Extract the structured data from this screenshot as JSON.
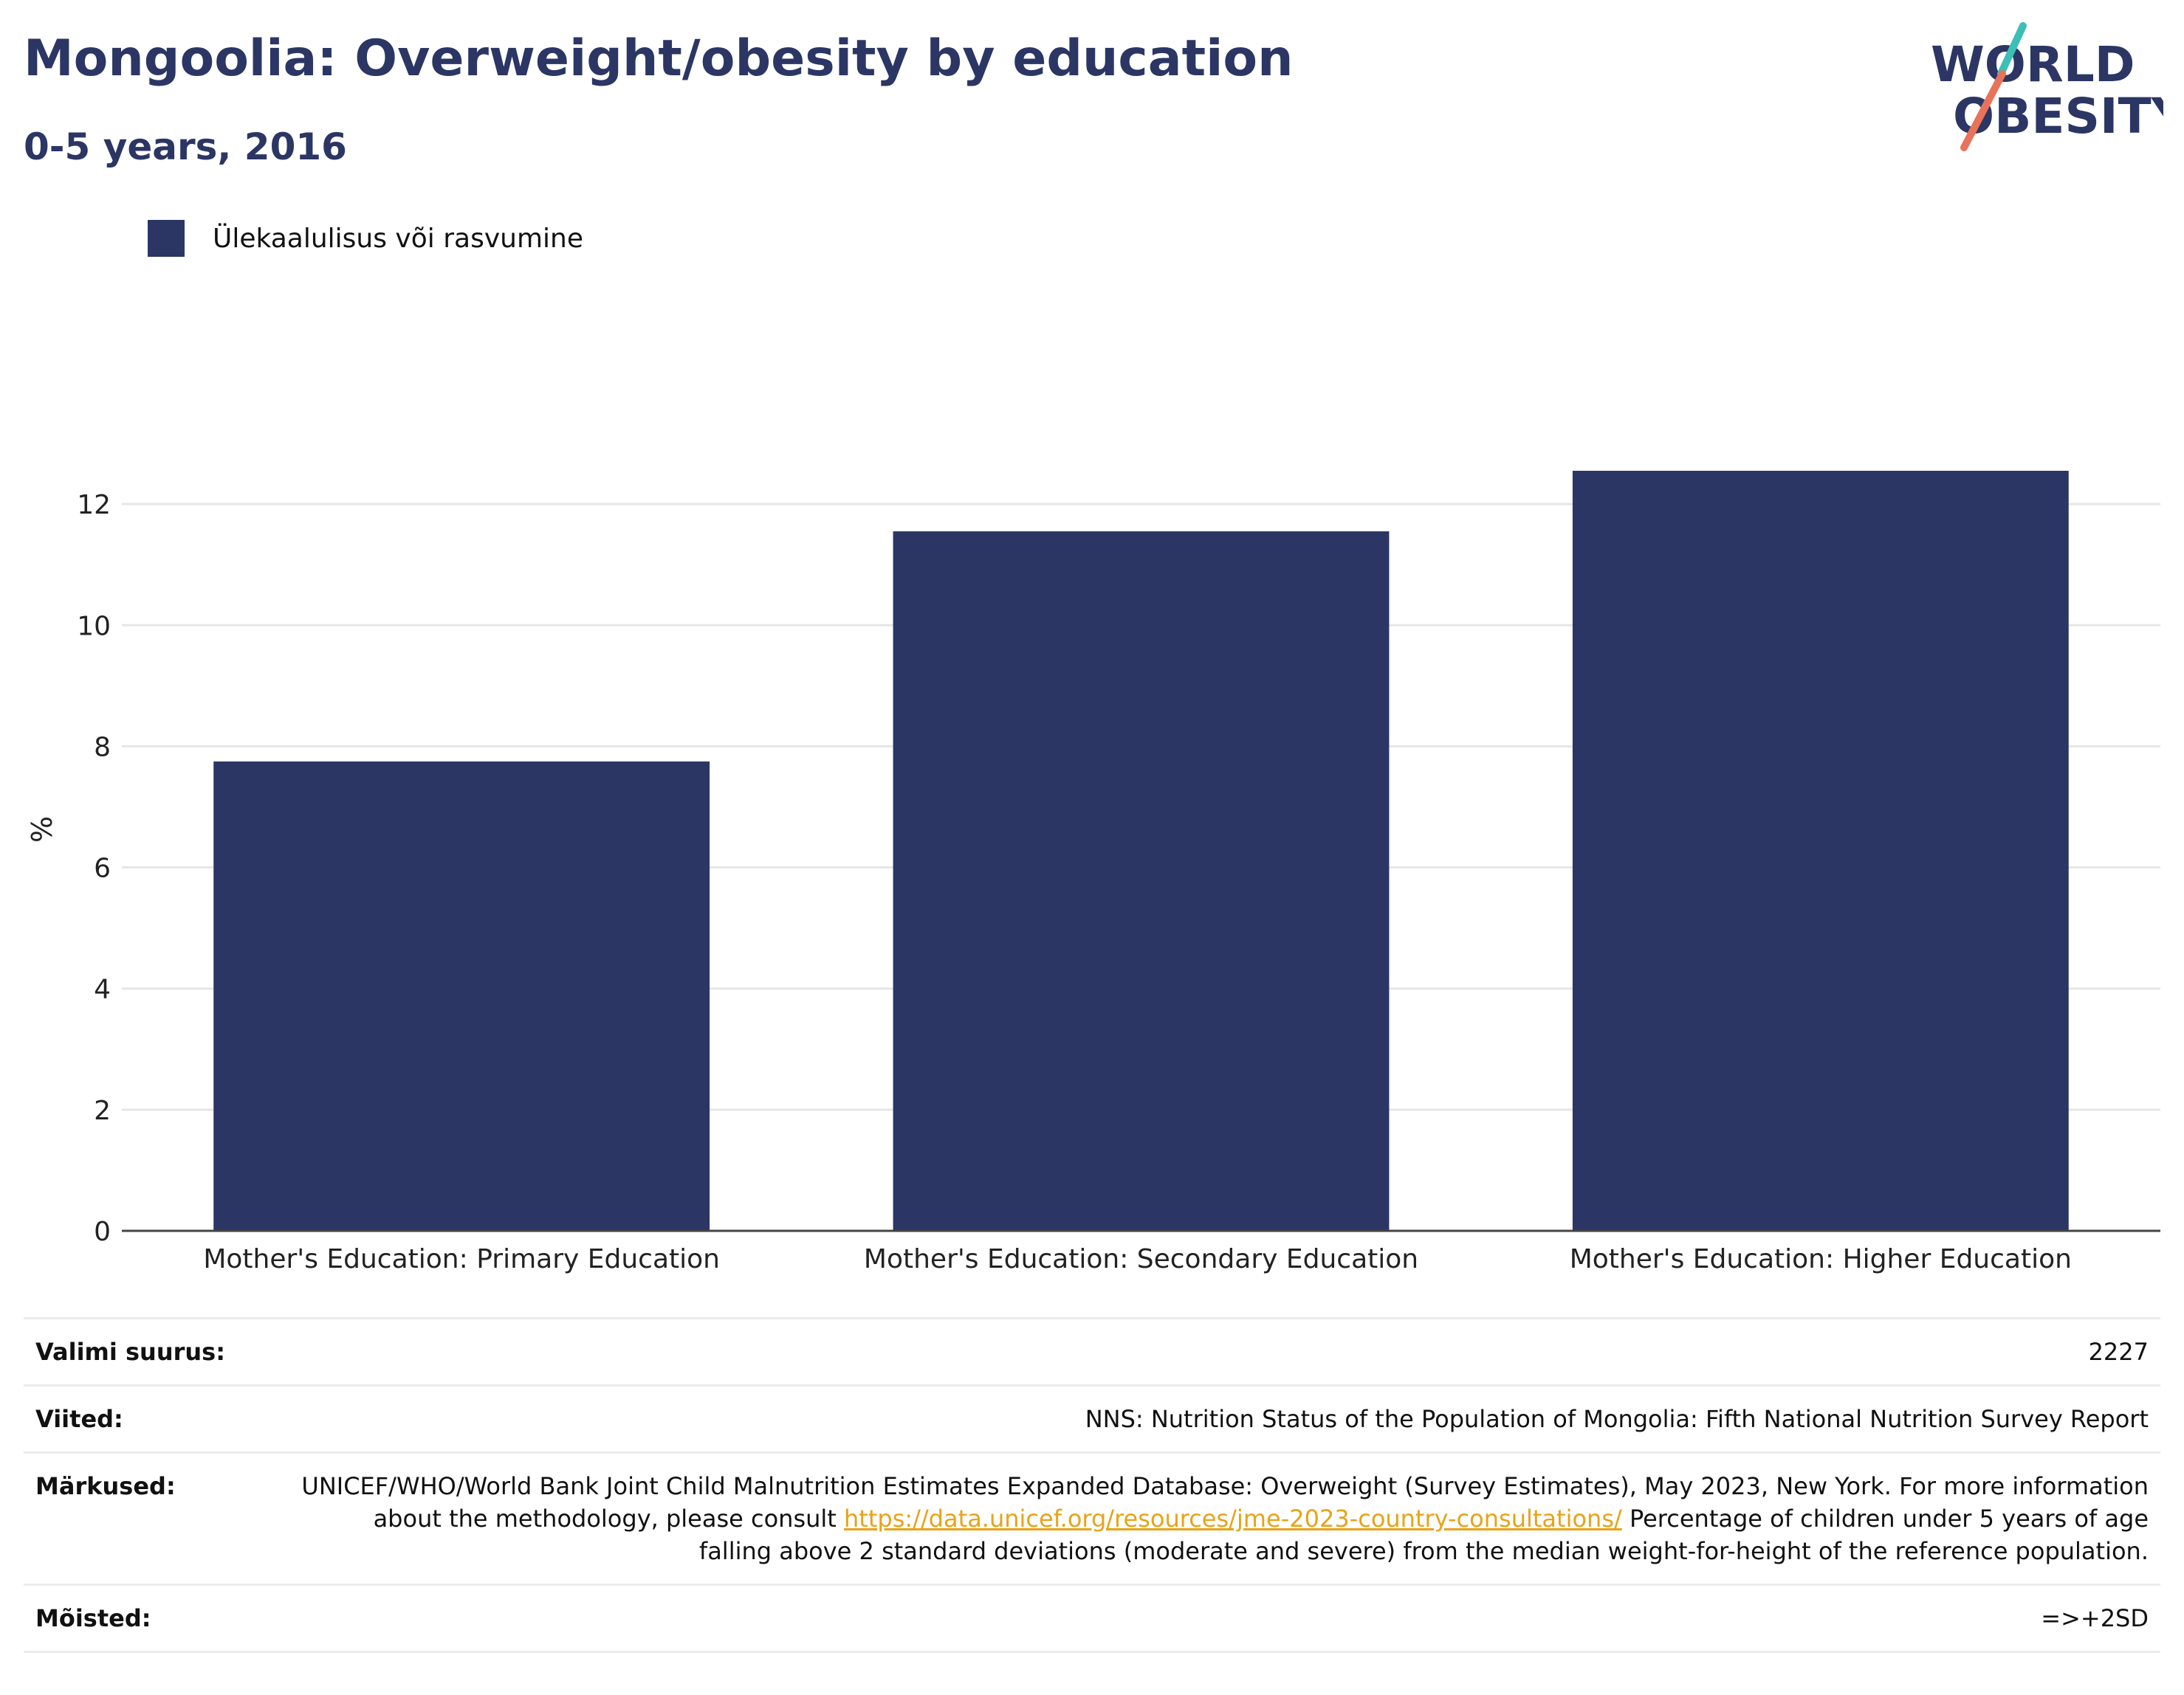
{
  "header": {
    "title": "Mongoolia: Overweight/obesity by education",
    "subtitle": "0-5 years, 2016"
  },
  "logo": {
    "line1": "WORLD",
    "line2": "OBESITY",
    "colors": {
      "text": "#2b3664",
      "slash_top": "#3bbfb7",
      "slash_bottom": "#e8735a"
    }
  },
  "chart_data": {
    "type": "bar",
    "categories": [
      "Mother's Education: Primary Education",
      "Mother's Education: Secondary Education",
      "Mother's Education: Higher Education"
    ],
    "series": [
      {
        "name": "Ülekaalulisus või rasvumine",
        "values": [
          7.75,
          11.55,
          12.55
        ],
        "color": "#2b3664"
      }
    ],
    "ylabel": "%",
    "ylim": [
      0,
      13.5
    ],
    "yticks": [
      0,
      2,
      4,
      6,
      8,
      10,
      12
    ],
    "grid": true,
    "legend": "top-left"
  },
  "info": {
    "sample_size": {
      "label": "Valimi suurus:",
      "value": "2227"
    },
    "references": {
      "label": "Viited:",
      "value": "NNS: Nutrition Status of the Population of Mongolia: Fifth National Nutrition Survey Report"
    },
    "notes": {
      "label": "Märkused:",
      "text_before": "UNICEF/WHO/World Bank Joint Child Malnutrition Estimates Expanded Database: Overweight (Survey Estimates), May 2023, New York. For more information about the methodology, please consult",
      "link": "https://data.unicef.org/resources/jme-2023-country-consultations/",
      "text_after": "Percentage of children under 5 years of age falling above 2 standard deviations (moderate and severe) from the median weight-for-height of the reference population."
    },
    "definitions": {
      "label": "Mõisted:",
      "value": "=>+2SD"
    }
  }
}
